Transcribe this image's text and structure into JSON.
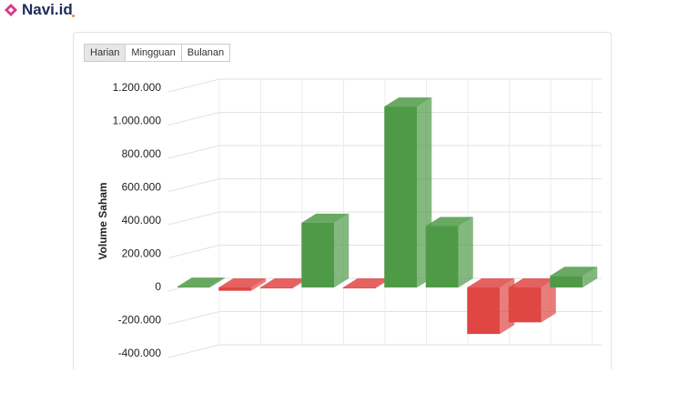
{
  "logo": "Navi.id",
  "tabs": [
    "Harian",
    "Mingguan",
    "Bulanan"
  ],
  "chart_data": {
    "type": "bar3d",
    "y_label": "Volume Saham",
    "categories": [
      null,
      null,
      null,
      null,
      null,
      null,
      null,
      null,
      null,
      null
    ],
    "values": [
      5000,
      -20000,
      -5000,
      390000,
      -5000,
      1090000,
      370000,
      -280000,
      -210000,
      70000
    ],
    "colors": {
      "positive": "#4f9a47",
      "negative": "#e04644"
    },
    "ylim": [
      -400000,
      1200000
    ],
    "yticks": [
      {
        "value": -400000,
        "label": "-400.000"
      },
      {
        "value": -200000,
        "label": "-200.000"
      },
      0,
      {
        "value": 200000,
        "label": "200.000"
      },
      {
        "value": 400000,
        "label": "400.000"
      },
      {
        "value": 600000,
        "label": "600.000"
      },
      {
        "value": 800000,
        "label": "800.000"
      },
      {
        "value": 1000000,
        "label": "1.000.000"
      },
      {
        "value": 1200000,
        "label": "1.200.000"
      }
    ],
    "grid": true
  }
}
